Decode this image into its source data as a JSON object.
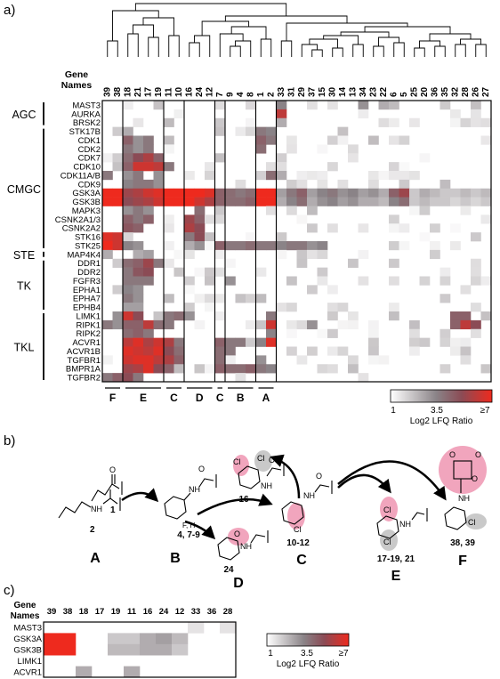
{
  "panel_labels": {
    "a": "a)",
    "b": "b)",
    "c": "c)"
  },
  "heatmap_a": {
    "col_header": [
      "Gene",
      "Names"
    ],
    "columns": [
      "39",
      "38",
      "18",
      "21",
      "17",
      "19",
      "11",
      "10",
      "16",
      "24",
      "12",
      "7",
      "9",
      "4",
      "8",
      "1",
      "2",
      "33",
      "31",
      "29",
      "37",
      "15",
      "30",
      "14",
      "13",
      "34",
      "23",
      "22",
      "6",
      "5",
      "25",
      "20",
      "36",
      "35",
      "32",
      "28",
      "26",
      "27"
    ],
    "groups": [
      {
        "name": "AGC",
        "genes": [
          "MAST3",
          "AURKA",
          "BRSK2"
        ]
      },
      {
        "name": "CMGC",
        "genes": [
          "STK17B",
          "CDK1",
          "CDK2",
          "CDK7",
          "CDK10",
          "CDK11A/B",
          "CDK9",
          "GSK3A",
          "GSK3B",
          "MAPK3",
          "CSNK2A1/3",
          "CSNK2A2",
          "STK16",
          "STK25"
        ]
      },
      {
        "name": "STE",
        "genes": [
          "MAP4K4"
        ]
      },
      {
        "name": "TK",
        "genes": [
          "DDR1",
          "DDR2",
          "FGFR3",
          "EPHA1",
          "EPHA7",
          "EPHB4"
        ]
      },
      {
        "name": "TKL",
        "genes": [
          "LIMK1",
          "RIPK1",
          "RIPK2",
          "ACVR1",
          "ACVR1B",
          "TGFBR1",
          "BMPR1A",
          "TGFBR2"
        ]
      }
    ],
    "cluster_labels": [
      "F",
      "E",
      "C",
      "D",
      "C",
      "B",
      "A"
    ],
    "legend": {
      "min": "1",
      "mid": "3.5",
      "max": "≥7",
      "title": "Log2 LFQ Ratio"
    }
  },
  "scheme_b": {
    "compounds": [
      "1",
      "2",
      "4, 7-9",
      "16",
      "24",
      "10-12",
      "17-19, 21",
      "38, 39"
    ],
    "substituent_label": "F, H",
    "groups": [
      "A",
      "B",
      "C",
      "D",
      "E",
      "F"
    ],
    "atoms": {
      "o": "O",
      "nh": "NH",
      "cl": "Cl"
    }
  },
  "heatmap_c": {
    "col_header": [
      "Gene",
      "Names"
    ],
    "columns": [
      "39",
      "38",
      "18",
      "17",
      "19",
      "11",
      "16",
      "24",
      "12",
      "33",
      "36",
      "28"
    ],
    "genes": [
      "MAST3",
      "GSK3A",
      "GSK3B",
      "LIMK1",
      "ACVR1"
    ],
    "legend": {
      "min": "1",
      "mid": "3.5",
      "max": "≥7",
      "title": "Log2 LFQ Ratio"
    }
  },
  "colors": {
    "low": "#ffffff",
    "mid": "#7a6f74",
    "high": "#e8281e",
    "highlight_pink": "#f1a5bd",
    "highlight_grey": "#c9c9c9"
  }
}
